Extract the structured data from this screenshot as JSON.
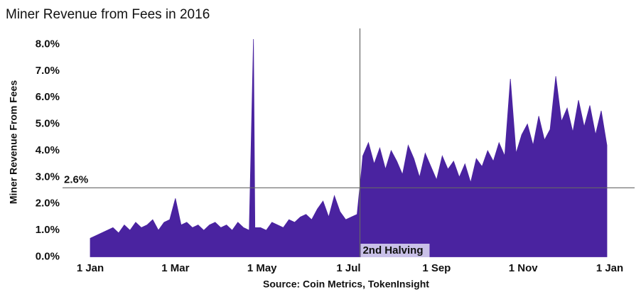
{
  "chart_data": {
    "type": "area",
    "title": "Miner Revenue from Fees in 2016",
    "y_label": "Miner Revenue From Fees",
    "source": "Source: Coin Metrics, TokenInsight",
    "color": "#4a23a0",
    "x": [
      0,
      4,
      8,
      12,
      16,
      20,
      24,
      28,
      32,
      36,
      40,
      44,
      48,
      52,
      56,
      60,
      64,
      68,
      72,
      76,
      80,
      84,
      88,
      92,
      96,
      100,
      104,
      108,
      112,
      115,
      116,
      120,
      124,
      128,
      132,
      136,
      140,
      144,
      148,
      152,
      156,
      160,
      164,
      168,
      172,
      176,
      180,
      184,
      188,
      191,
      192,
      196,
      200,
      204,
      208,
      212,
      216,
      220,
      224,
      228,
      232,
      236,
      240,
      244,
      248,
      252,
      256,
      260,
      264,
      268,
      272,
      276,
      280,
      284,
      288,
      292,
      296,
      300,
      304,
      308,
      312,
      316,
      320,
      324,
      328,
      332,
      336,
      340,
      344,
      348,
      352,
      356,
      360,
      364
    ],
    "values": [
      0.7,
      0.8,
      0.9,
      1.0,
      1.1,
      0.9,
      1.2,
      1.0,
      1.3,
      1.1,
      1.2,
      1.4,
      1.0,
      1.3,
      1.4,
      2.2,
      1.2,
      1.3,
      1.1,
      1.2,
      1.0,
      1.2,
      1.3,
      1.1,
      1.2,
      1.0,
      1.3,
      1.1,
      1.0,
      8.2,
      1.1,
      1.1,
      1.0,
      1.3,
      1.2,
      1.1,
      1.4,
      1.3,
      1.5,
      1.6,
      1.4,
      1.8,
      2.1,
      1.5,
      2.3,
      1.7,
      1.4,
      1.5,
      1.6,
      3.2,
      3.8,
      4.3,
      3.5,
      4.1,
      3.3,
      4.0,
      3.6,
      3.1,
      4.2,
      3.7,
      3.0,
      3.9,
      3.4,
      2.9,
      3.8,
      3.3,
      3.6,
      3.0,
      3.5,
      2.8,
      3.7,
      3.4,
      4.0,
      3.6,
      4.3,
      3.8,
      6.7,
      3.9,
      4.6,
      5.0,
      4.2,
      5.3,
      4.4,
      4.8,
      6.8,
      5.1,
      5.6,
      4.7,
      5.9,
      4.9,
      5.7,
      4.6,
      5.5,
      4.2
    ],
    "xlim": [
      0,
      366
    ],
    "xticks": [
      {
        "value": 0,
        "label": "1 Jan"
      },
      {
        "value": 60,
        "label": "1 Mar"
      },
      {
        "value": 121,
        "label": "1 May"
      },
      {
        "value": 182,
        "label": "1 Jul"
      },
      {
        "value": 244,
        "label": "1 Sep"
      },
      {
        "value": 305,
        "label": "1 Nov"
      },
      {
        "value": 366,
        "label": "1 Jan"
      }
    ],
    "ylim": [
      0,
      8.6
    ],
    "yticks": [
      {
        "value": 0,
        "label": "0.0%"
      },
      {
        "value": 1,
        "label": "1.0%"
      },
      {
        "value": 2,
        "label": "2.0%"
      },
      {
        "value": 3,
        "label": "3.0%"
      },
      {
        "value": 4,
        "label": "4.0%"
      },
      {
        "value": 5,
        "label": "5.0%"
      },
      {
        "value": 6,
        "label": "6.0%"
      },
      {
        "value": 7,
        "label": "7.0%"
      },
      {
        "value": 8,
        "label": "8.0%"
      }
    ],
    "grid": false,
    "reference_line": {
      "value": 2.6,
      "label": "2.6%"
    },
    "event_line": {
      "x": 190,
      "label": "2nd Halving"
    }
  }
}
